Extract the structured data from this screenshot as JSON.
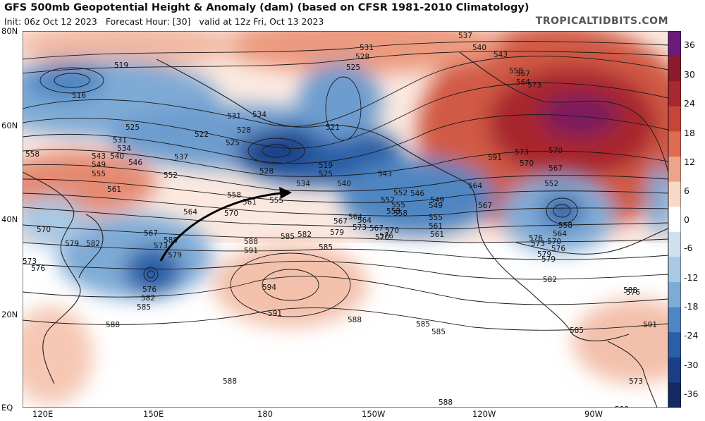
{
  "header": {
    "title": "GFS 500mb Geopotential Height & Anomaly (dam) (based on CFSR 1981-2010 Climatology)",
    "init": "Init: 06z Oct 12 2023",
    "forecast_hour": "Forecast Hour: [30]",
    "valid": "valid at 12z Fri, Oct 13 2023",
    "credit": "TROPICALTIDBITS.COM"
  },
  "axes": {
    "lat_labels": [
      "80N",
      "60N",
      "40N",
      "20N",
      "EQ"
    ],
    "lon_labels": [
      "120E",
      "150E",
      "180",
      "150W",
      "120W",
      "90W"
    ]
  },
  "colorbar": {
    "labels": [
      "36",
      "30",
      "24",
      "18",
      "12",
      "6",
      "0",
      "-6",
      "-12",
      "-18",
      "-24",
      "-30",
      "-36"
    ],
    "colors": [
      "#6a1b7a",
      "#8b1a2b",
      "#a8282f",
      "#c8443a",
      "#de6b52",
      "#eea48a",
      "#f8d8c8",
      "#ffffff",
      "#cfe0ef",
      "#a9c8e4",
      "#7eaad6",
      "#4f86c2",
      "#2a5ea6",
      "#1b3f86",
      "#132a63"
    ]
  },
  "contours": {
    "labels": [
      "516",
      "519",
      "525",
      "528",
      "531",
      "534",
      "537",
      "540",
      "543",
      "546",
      "549",
      "552",
      "555",
      "558",
      "561",
      "564",
      "567",
      "570",
      "573",
      "576",
      "579",
      "582",
      "585",
      "588",
      "591",
      "594"
    ],
    "visible_labels": [
      {
        "t": "537"
      },
      {
        "t": "540"
      },
      {
        "t": "543"
      },
      {
        "t": "531"
      },
      {
        "t": "528"
      },
      {
        "t": "525"
      },
      {
        "t": "519"
      },
      {
        "t": "516"
      },
      {
        "t": "531"
      },
      {
        "t": "534"
      },
      {
        "t": "528"
      },
      {
        "t": "525"
      },
      {
        "t": "522"
      },
      {
        "t": "537"
      },
      {
        "t": "521"
      },
      {
        "t": "525"
      },
      {
        "t": "531"
      },
      {
        "t": "534"
      },
      {
        "t": "540"
      },
      {
        "t": "543"
      },
      {
        "t": "546"
      },
      {
        "t": "549"
      },
      {
        "t": "555"
      },
      {
        "t": "552"
      },
      {
        "t": "558"
      },
      {
        "t": "561"
      },
      {
        "t": "528"
      },
      {
        "t": "519"
      },
      {
        "t": "525"
      },
      {
        "t": "534"
      },
      {
        "t": "540"
      },
      {
        "t": "543"
      },
      {
        "t": "546"
      },
      {
        "t": "552"
      },
      {
        "t": "549"
      },
      {
        "t": "555"
      },
      {
        "t": "558"
      },
      {
        "t": "561"
      },
      {
        "t": "558"
      },
      {
        "t": "561"
      },
      {
        "t": "555"
      },
      {
        "t": "564"
      },
      {
        "t": "567"
      },
      {
        "t": "570"
      },
      {
        "t": "567"
      },
      {
        "t": "564"
      },
      {
        "t": "573"
      },
      {
        "t": "570"
      },
      {
        "t": "576"
      },
      {
        "t": "579"
      },
      {
        "t": "582"
      },
      {
        "t": "573"
      },
      {
        "t": "579"
      },
      {
        "t": "576"
      },
      {
        "t": "582"
      },
      {
        "t": "585"
      },
      {
        "t": "588"
      },
      {
        "t": "588"
      },
      {
        "t": "591"
      },
      {
        "t": "594"
      },
      {
        "t": "591"
      },
      {
        "t": "588"
      },
      {
        "t": "585"
      },
      {
        "t": "585"
      },
      {
        "t": "588"
      },
      {
        "t": "564"
      },
      {
        "t": "567"
      },
      {
        "t": "570"
      },
      {
        "t": "573"
      },
      {
        "t": "576"
      },
      {
        "t": "579"
      },
      {
        "t": "558"
      },
      {
        "t": "564"
      },
      {
        "t": "570"
      },
      {
        "t": "573"
      },
      {
        "t": "576"
      },
      {
        "t": "579"
      },
      {
        "t": "582"
      },
      {
        "t": "585"
      },
      {
        "t": "588"
      },
      {
        "t": "591"
      },
      {
        "t": "567"
      },
      {
        "t": "570"
      },
      {
        "t": "573"
      },
      {
        "t": "567"
      },
      {
        "t": "564"
      },
      {
        "t": "558"
      },
      {
        "t": "552"
      },
      {
        "t": "570"
      },
      {
        "t": "573"
      },
      {
        "t": "576"
      },
      {
        "t": "579"
      },
      {
        "t": "582"
      },
      {
        "t": "585"
      },
      {
        "t": "588"
      },
      {
        "t": "552"
      },
      {
        "t": "549"
      },
      {
        "t": "555"
      },
      {
        "t": "558"
      },
      {
        "t": "561"
      },
      {
        "t": "564"
      },
      {
        "t": "567"
      },
      {
        "t": "570"
      },
      {
        "t": "573"
      },
      {
        "t": "576"
      },
      {
        "t": "588"
      },
      {
        "t": "591"
      },
      {
        "t": "588"
      },
      {
        "t": "585"
      }
    ]
  }
}
